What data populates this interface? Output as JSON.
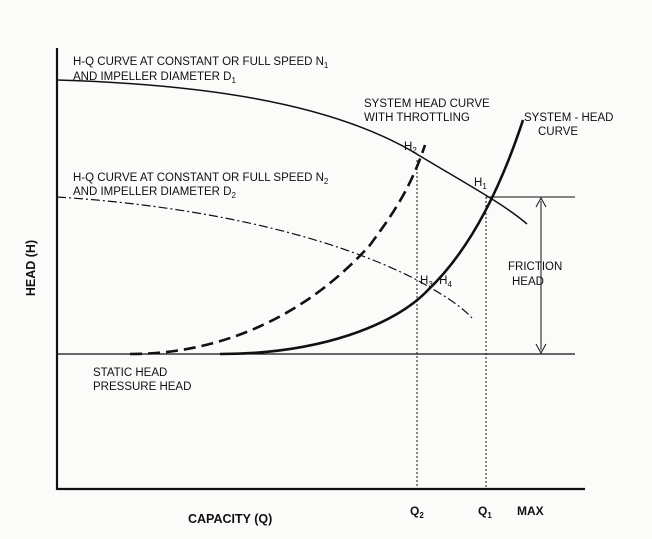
{
  "labels": {
    "hq_n1_line1": "H-Q CURVE AT CONSTANT OR FULL SPEED N",
    "hq_n1_line1_sub": "1",
    "hq_n1_line2": "AND IMPELLER DIAMETER D",
    "hq_n1_line2_sub": "1",
    "hq_n2_line1": "H-Q CURVE AT CONSTANT OR FULL SPEED N",
    "hq_n2_line1_sub": "2",
    "hq_n2_line2": "AND IMPELLER DIAMETER D",
    "hq_n2_line2_sub": "2",
    "throttle_line1": "SYSTEM HEAD CURVE",
    "throttle_line2": "WITH THROTTLING",
    "system_line1": "SYSTEM - HEAD",
    "system_line2": "CURVE",
    "friction_line1": "FRICTION",
    "friction_line2": "HEAD",
    "static_line1": "STATIC HEAD",
    "static_line2": "PRESSURE HEAD",
    "h1": "H",
    "h1_sub": "1",
    "h2": "H",
    "h2_sub": "2",
    "h34_a": "H",
    "h34_a_sub": "3",
    "h34_sep": ", H",
    "h34_b_sub": "4",
    "q2": "Q",
    "q2_sub": "2",
    "q1": "Q",
    "q1_sub": "1",
    "max": "MAX",
    "x_axis": "CAPACITY (Q)",
    "y_axis": "HEAD (H)"
  }
}
